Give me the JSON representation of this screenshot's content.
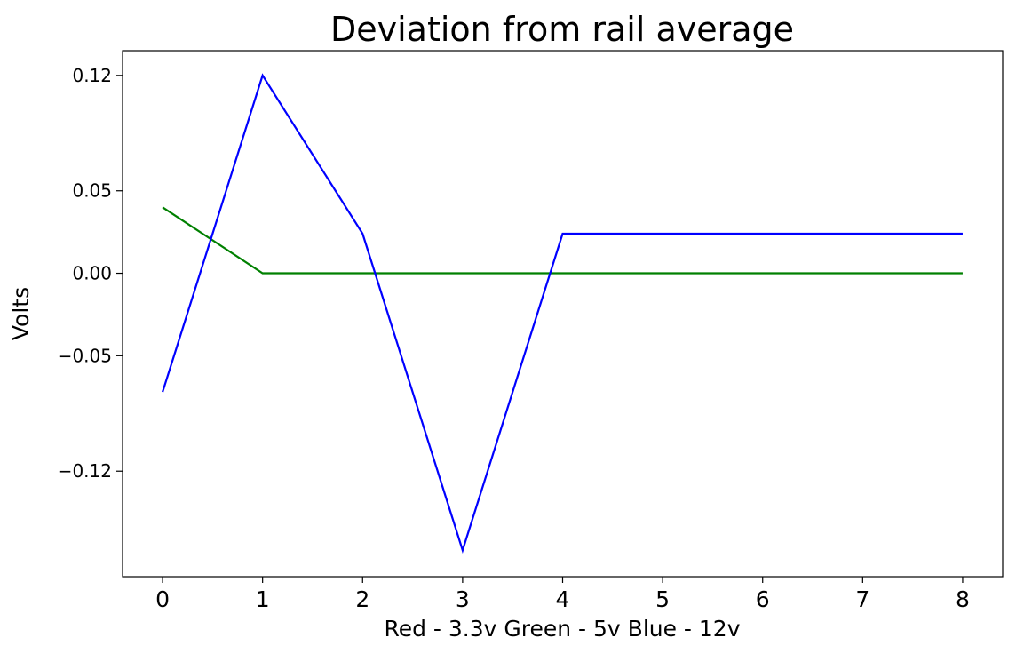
{
  "chart_data": {
    "type": "line",
    "title": "Deviation from rail average",
    "xlabel": "Red - 3.3v  Green - 5v  Blue - 12v",
    "ylabel": "Volts",
    "x": [
      0,
      1,
      2,
      3,
      4,
      5,
      6,
      7,
      8
    ],
    "xlim": [
      -0.4,
      8.4
    ],
    "ylim": [
      -0.184,
      0.135
    ],
    "xticks": [
      0,
      1,
      2,
      3,
      4,
      5,
      6,
      7,
      8
    ],
    "xtick_labels": [
      "0",
      "1",
      "2",
      "3",
      "4",
      "5",
      "6",
      "7",
      "8"
    ],
    "yticks": [
      0.12,
      0.05,
      0.0,
      -0.05,
      -0.12
    ],
    "ytick_labels": [
      "0.12",
      "0.05",
      "0.00",
      "−0.05",
      "−0.12"
    ],
    "grid": false,
    "series": [
      {
        "color": "#008000",
        "values": [
          0.04,
          0.0,
          0.0,
          0.0,
          0.0,
          0.0,
          0.0,
          0.0,
          0.0
        ]
      },
      {
        "color": "#0000ff",
        "values": [
          -0.072,
          0.12,
          0.024,
          -0.168,
          0.024,
          0.024,
          0.024,
          0.024,
          0.024
        ]
      }
    ]
  }
}
